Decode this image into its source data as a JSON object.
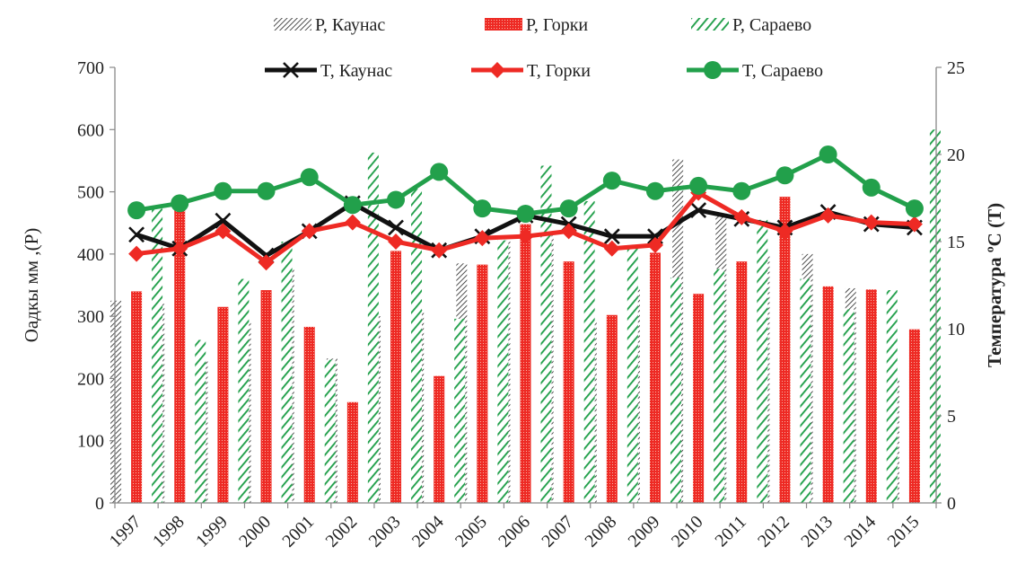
{
  "chart_data": {
    "type": "bar",
    "categories": [
      "1997",
      "1998",
      "1999",
      "2000",
      "2001",
      "2002",
      "2003",
      "2004",
      "2005",
      "2006",
      "2007",
      "2008",
      "2009",
      "2010",
      "2011",
      "2012",
      "2013",
      "2014",
      "2015"
    ],
    "bar_series": [
      {
        "name": "P, Каунас",
        "values": [
          325,
          320,
          230,
          290,
          378,
          232,
          300,
          310,
          385,
          422,
          430,
          290,
          345,
          552,
          465,
          398,
          400,
          345,
          198
        ],
        "color": "#333333",
        "pattern": "diag-dense"
      },
      {
        "name": "P, Горки",
        "values": [
          340,
          478,
          315,
          342,
          283,
          162,
          405,
          204,
          383,
          448,
          388,
          302,
          402,
          336,
          388,
          492,
          348,
          343,
          279
        ],
        "color": "#ee2a24",
        "pattern": "dots-red"
      },
      {
        "name": "P, Сараево",
        "values": [
          473,
          262,
          360,
          420,
          230,
          563,
          505,
          296,
          422,
          542,
          485,
          415,
          362,
          376,
          455,
          360,
          311,
          342,
          600
        ],
        "color": "#22a04b",
        "pattern": "diag-green"
      }
    ],
    "line_series": [
      {
        "name": "T, Каунас",
        "values": [
          15.4,
          14.6,
          16.2,
          14.2,
          15.6,
          17.2,
          15.8,
          14.5,
          15.3,
          16.5,
          16.0,
          15.3,
          15.3,
          16.8,
          16.3,
          15.8,
          16.7,
          16.0,
          15.8
        ],
        "color": "#111111",
        "marker": "x"
      },
      {
        "name": "T, Горки",
        "values": [
          14.3,
          14.6,
          15.6,
          13.8,
          15.6,
          16.1,
          15.0,
          14.5,
          15.2,
          15.3,
          15.6,
          14.6,
          14.8,
          17.8,
          16.4,
          15.6,
          16.5,
          16.1,
          16.0
        ],
        "color": "#ee2a24",
        "marker": "diamond"
      },
      {
        "name": "T, Сараево",
        "values": [
          16.8,
          17.2,
          17.9,
          17.9,
          18.7,
          17.1,
          17.4,
          19.0,
          16.9,
          16.6,
          16.9,
          18.5,
          17.9,
          18.2,
          17.9,
          18.8,
          20.0,
          18.1,
          16.9
        ],
        "color": "#22a04b",
        "marker": "circle"
      }
    ],
    "ylabel_left": "Оадкы  мм ,(P)",
    "ylabel_right": "Температура ºС (Т)",
    "ylim_left": [
      0,
      700
    ],
    "ylim_right": [
      0,
      25
    ],
    "yticks_left": [
      0,
      100,
      200,
      300,
      400,
      500,
      600,
      700
    ],
    "yticks_right": [
      0,
      5,
      10,
      15,
      20,
      25
    ],
    "grid": false,
    "legend_position": "top"
  }
}
